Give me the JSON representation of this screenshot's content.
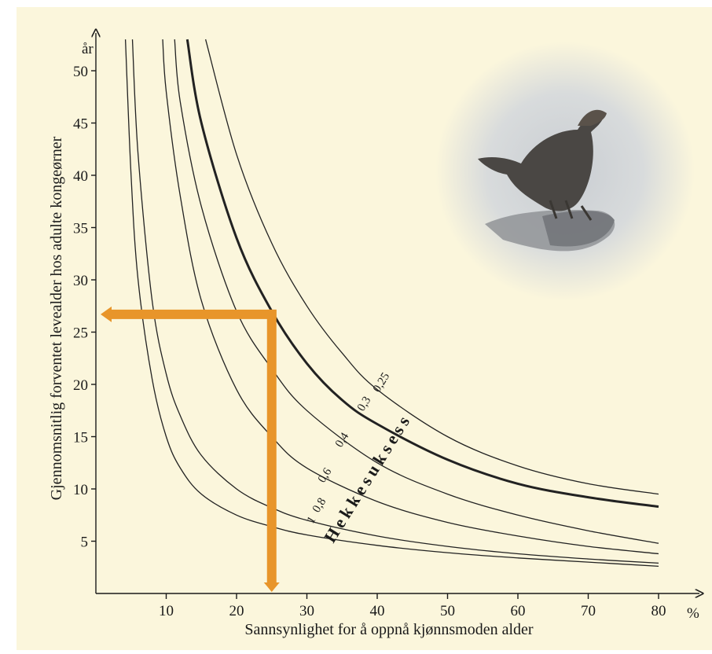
{
  "chart_data": {
    "type": "line",
    "xlabel": "Sannsynlighet for å oppnå kjønnsmoden alder",
    "ylabel": "Gjennomsnitlig forventet levealder hos adulte kongeørner",
    "x_unit": "%",
    "y_unit": "år",
    "xlim": [
      0,
      82
    ],
    "ylim": [
      0,
      53
    ],
    "x_ticks": [
      10,
      20,
      30,
      40,
      50,
      60,
      70,
      80
    ],
    "y_ticks": [
      5,
      10,
      15,
      20,
      25,
      30,
      35,
      40,
      45,
      50
    ],
    "grid": false,
    "group_label": "Hekkesuksess",
    "series": [
      {
        "name": "1",
        "width": 1.3,
        "points": [
          [
            4.2,
            53
          ],
          [
            5,
            40
          ],
          [
            6,
            30
          ],
          [
            8,
            20.5
          ],
          [
            10,
            15
          ],
          [
            12,
            12
          ],
          [
            15,
            9.5
          ],
          [
            20,
            7.5
          ],
          [
            25,
            6.4
          ],
          [
            30,
            5.6
          ],
          [
            40,
            4.6
          ],
          [
            50,
            3.9
          ],
          [
            60,
            3.4
          ],
          [
            70,
            3
          ],
          [
            80,
            2.6
          ]
        ]
      },
      {
        "name": "0,8",
        "width": 1.3,
        "points": [
          [
            5.2,
            53
          ],
          [
            6,
            42
          ],
          [
            8,
            28
          ],
          [
            10,
            21
          ],
          [
            12,
            17
          ],
          [
            15,
            13.2
          ],
          [
            20,
            10
          ],
          [
            25,
            8.2
          ],
          [
            30,
            7
          ],
          [
            40,
            5.5
          ],
          [
            50,
            4.5
          ],
          [
            60,
            3.8
          ],
          [
            70,
            3.3
          ],
          [
            80,
            2.9
          ]
        ]
      },
      {
        "name": "0,6",
        "width": 1.3,
        "points": [
          [
            9.5,
            53
          ],
          [
            10,
            48
          ],
          [
            12,
            38
          ],
          [
            15,
            28
          ],
          [
            20,
            19.5
          ],
          [
            25,
            15
          ],
          [
            30,
            12
          ],
          [
            40,
            8.8
          ],
          [
            50,
            6.8
          ],
          [
            60,
            5.5
          ],
          [
            70,
            4.5
          ],
          [
            80,
            3.8
          ]
        ]
      },
      {
        "name": "0,4",
        "width": 1.3,
        "points": [
          [
            11.2,
            53
          ],
          [
            12,
            47
          ],
          [
            15,
            37
          ],
          [
            20,
            27
          ],
          [
            25,
            21.5
          ],
          [
            30,
            17.5
          ],
          [
            40,
            12.5
          ],
          [
            50,
            9.5
          ],
          [
            60,
            7.5
          ],
          [
            70,
            6
          ],
          [
            80,
            4.8
          ]
        ]
      },
      {
        "name": "0,3",
        "width": 3,
        "points": [
          [
            13,
            53
          ],
          [
            15,
            45
          ],
          [
            20,
            34
          ],
          [
            25,
            27
          ],
          [
            30,
            22
          ],
          [
            35,
            18.5
          ],
          [
            40,
            16.2
          ],
          [
            50,
            12.8
          ],
          [
            60,
            10.5
          ],
          [
            70,
            9.2
          ],
          [
            80,
            8.3
          ]
        ]
      },
      {
        "name": "0,25",
        "width": 1.3,
        "points": [
          [
            15.6,
            53
          ],
          [
            20,
            42
          ],
          [
            25,
            33.5
          ],
          [
            30,
            27.5
          ],
          [
            35,
            23
          ],
          [
            40,
            19.5
          ],
          [
            50,
            15
          ],
          [
            60,
            12.2
          ],
          [
            70,
            10.5
          ],
          [
            80,
            9.5
          ]
        ]
      }
    ],
    "annotation": {
      "color": "#e8952a",
      "x": 25,
      "y": 26.7
    }
  },
  "colors": {
    "background": "#fbf6dc",
    "axis": "#1a1a1a",
    "curve": "#222222"
  }
}
